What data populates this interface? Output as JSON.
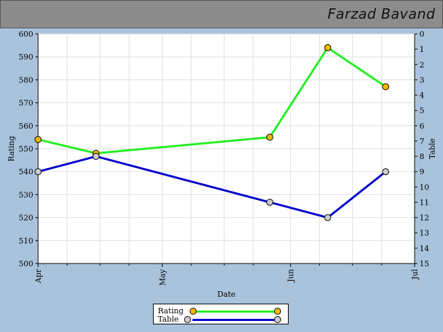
{
  "header": {
    "title": "Farzad Bavand"
  },
  "chart_data": {
    "type": "line",
    "xlabel": "Date",
    "ylabel_left": "Rating",
    "ylabel_right": "Table",
    "x_ticks": [
      "Apr",
      "May",
      "Jun",
      "Jul"
    ],
    "x_range": [
      "2008-04-01",
      "2008-07-01"
    ],
    "left_axis": {
      "ylim": [
        500,
        600
      ],
      "ticks": [
        500,
        510,
        520,
        530,
        540,
        550,
        560,
        570,
        580,
        590,
        600
      ]
    },
    "right_axis": {
      "ylim": [
        0,
        15
      ],
      "inverted": true,
      "ticks": [
        0,
        1,
        2,
        3,
        4,
        5,
        6,
        7,
        8,
        9,
        10,
        11,
        12,
        13,
        14,
        15
      ]
    },
    "grid": true,
    "legend_position": "bottom",
    "series": [
      {
        "name": "Rating",
        "axis": "left",
        "line_color": "#22ee22",
        "marker_color": "#f5b800",
        "x": [
          "2008-04-01",
          "2008-04-15",
          "2008-05-27",
          "2008-06-10",
          "2008-06-24"
        ],
        "values": [
          554,
          548,
          555,
          594,
          577
        ]
      },
      {
        "name": "Table",
        "axis": "right",
        "line_color": "#0000cc",
        "marker_color": "#cccccc",
        "x": [
          "2008-04-01",
          "2008-04-15",
          "2008-05-27",
          "2008-06-10",
          "2008-06-24"
        ],
        "values": [
          9,
          8,
          11,
          12,
          9
        ]
      }
    ]
  }
}
